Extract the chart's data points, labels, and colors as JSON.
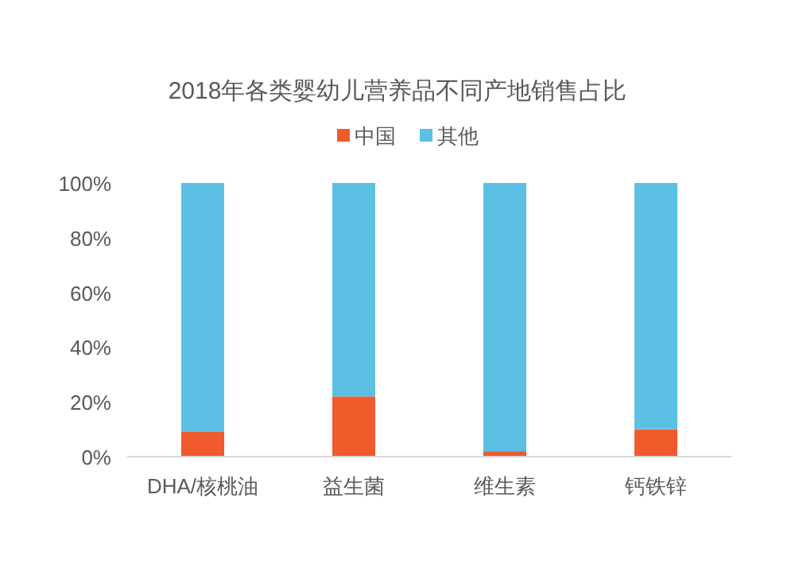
{
  "chart_data": {
    "type": "bar",
    "title": "2018年各类婴幼儿营养品不同产地销售占比",
    "stacked": true,
    "legend": "top",
    "categories": [
      "DHA/核桃油",
      "益生菌",
      "维生素",
      "钙铁锌"
    ],
    "series": [
      {
        "name": "中国",
        "color": "#f15a2b",
        "values": [
          9,
          22,
          2,
          10
        ]
      },
      {
        "name": "其他",
        "color": "#5bc0e3",
        "values": [
          91,
          78,
          98,
          90
        ]
      }
    ],
    "ylim": [
      0,
      100
    ],
    "yticks": [
      {
        "value": 0,
        "label": "0%"
      },
      {
        "value": 20,
        "label": "20%"
      },
      {
        "value": 40,
        "label": "40%"
      },
      {
        "value": 60,
        "label": "60%"
      },
      {
        "value": 80,
        "label": "80%"
      },
      {
        "value": 100,
        "label": "100%"
      }
    ],
    "grid": false
  }
}
